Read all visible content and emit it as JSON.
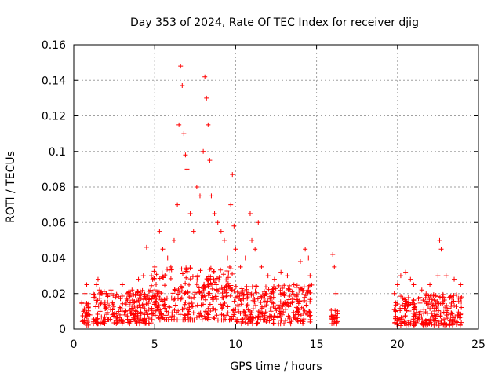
{
  "chart_data": {
    "type": "scatter",
    "title": "Day 353 of 2024, Rate Of TEC Index for receiver djig",
    "xlabel": "GPS time / hours",
    "ylabel": "ROTI / TECUs",
    "xlim": [
      0,
      25
    ],
    "ylim": [
      0,
      0.16
    ],
    "xticks": [
      0,
      5,
      10,
      15,
      20,
      25
    ],
    "xtick_labels": [
      "0",
      "5",
      "10",
      "15",
      "20",
      "25"
    ],
    "yticks": [
      0,
      0.02,
      0.04,
      0.06,
      0.08,
      0.1,
      0.12,
      0.14,
      0.16
    ],
    "ytick_labels": [
      "0",
      "0.02",
      "0.04",
      "0.06",
      "0.08",
      "0.1",
      "0.12",
      "0.14",
      "0.16"
    ],
    "grid": true,
    "marker": "+",
    "color": "#ff0000",
    "series": [
      {
        "name": "ROTI",
        "x": [
          0.5,
          0.6,
          0.7,
          0.8,
          0.9,
          1.0,
          1.3,
          1.4,
          1.5,
          1.6,
          1.7,
          2.0,
          2.3,
          2.6,
          3.0,
          3.3,
          3.6,
          4.0,
          4.3,
          4.5,
          4.8,
          5.0,
          5.3,
          5.5,
          5.8,
          6.0,
          6.2,
          6.4,
          6.5,
          6.6,
          6.7,
          6.8,
          6.9,
          7.0,
          7.2,
          7.4,
          7.6,
          7.8,
          8.0,
          8.1,
          8.2,
          8.3,
          8.4,
          8.5,
          8.7,
          8.9,
          9.1,
          9.3,
          9.5,
          9.7,
          9.8,
          9.9,
          10.0,
          10.3,
          10.6,
          10.9,
          11.0,
          11.2,
          11.4,
          11.6,
          12.0,
          12.4,
          12.8,
          13.2,
          13.6,
          14.0,
          14.3,
          14.5,
          14.6,
          16.0,
          16.1,
          16.2,
          19.8,
          20.0,
          20.2,
          20.5,
          20.8,
          21.0,
          21.5,
          22.0,
          22.5,
          22.6,
          22.7,
          23.0,
          23.5,
          23.9
        ],
        "y": [
          0.015,
          0.01,
          0.02,
          0.025,
          0.012,
          0.008,
          0.018,
          0.025,
          0.028,
          0.022,
          0.015,
          0.02,
          0.022,
          0.018,
          0.025,
          0.02,
          0.022,
          0.028,
          0.03,
          0.046,
          0.03,
          0.035,
          0.055,
          0.045,
          0.04,
          0.035,
          0.05,
          0.07,
          0.115,
          0.148,
          0.137,
          0.11,
          0.098,
          0.09,
          0.065,
          0.055,
          0.08,
          0.075,
          0.1,
          0.142,
          0.13,
          0.115,
          0.095,
          0.075,
          0.065,
          0.06,
          0.055,
          0.05,
          0.04,
          0.07,
          0.087,
          0.058,
          0.045,
          0.035,
          0.04,
          0.065,
          0.05,
          0.045,
          0.06,
          0.035,
          0.03,
          0.028,
          0.032,
          0.03,
          0.025,
          0.038,
          0.045,
          0.04,
          0.03,
          0.042,
          0.035,
          0.02,
          0.02,
          0.025,
          0.03,
          0.032,
          0.028,
          0.025,
          0.022,
          0.025,
          0.03,
          0.05,
          0.045,
          0.03,
          0.028,
          0.025
        ]
      }
    ],
    "density_bands": [
      {
        "x": [
          0.5,
          0.95
        ],
        "y": [
          0.002,
          0.016
        ]
      },
      {
        "x": [
          1.2,
          4.8
        ],
        "y": [
          0.003,
          0.022
        ]
      },
      {
        "x": [
          4.8,
          10.0
        ],
        "y": [
          0.005,
          0.035
        ]
      },
      {
        "x": [
          10.0,
          14.7
        ],
        "y": [
          0.003,
          0.025
        ]
      },
      {
        "x": [
          15.9,
          16.3
        ],
        "y": [
          0.003,
          0.012
        ]
      },
      {
        "x": [
          19.8,
          24.0
        ],
        "y": [
          0.002,
          0.02
        ]
      }
    ]
  }
}
